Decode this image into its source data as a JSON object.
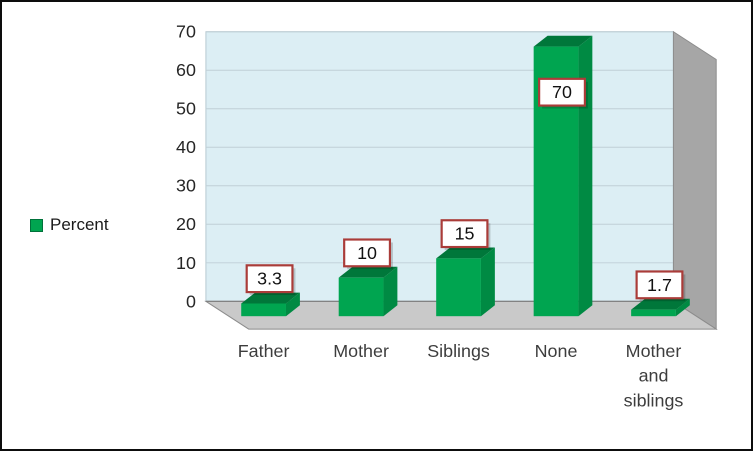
{
  "chart_data": {
    "type": "bar",
    "style": "3d-column",
    "title": "",
    "categories": [
      "Father",
      "Mother",
      "Siblings",
      "None",
      "Mother and siblings"
    ],
    "series": [
      {
        "name": "Percent",
        "values": [
          3.3,
          10,
          15,
          70,
          1.7
        ]
      }
    ],
    "data_labels": [
      "3.3",
      "10",
      "15",
      "70",
      "1.7"
    ],
    "ylim": [
      0,
      70
    ],
    "yticks": [
      0,
      10,
      20,
      30,
      40,
      50,
      60,
      70
    ],
    "legend_position": "left",
    "grid": true,
    "colors": {
      "bar_front": "#00A550",
      "bar_top": "#00773A",
      "bar_side": "#008A43",
      "bar_swatch_border": "#00713A",
      "wall": "#DCEEF4",
      "wall_border": "#B7C9D1",
      "side_wall": "#A6A6A6",
      "floor": "#C9C9C9",
      "edge": "#8C8C8C",
      "zero_line": "#7F7F7F",
      "gridline": "#C0CFD6",
      "label_box_border": "#AA3C39",
      "label_box_fill": "#FFFFFF",
      "frame_border": "#0D0D0D"
    }
  }
}
